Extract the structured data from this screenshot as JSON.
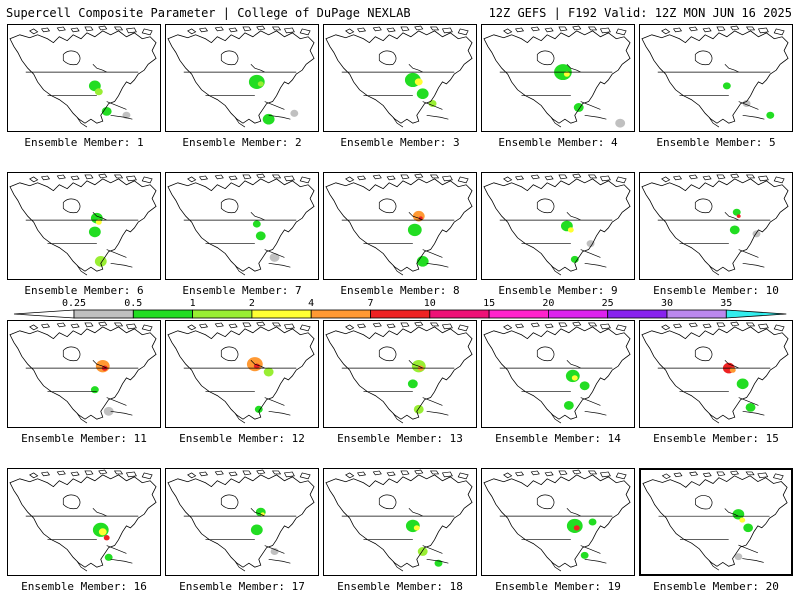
{
  "header": {
    "title_left": "Supercell Composite Parameter | College of DuPage NEXLAB",
    "title_right": "12Z GEFS | F192 Valid: 12Z MON JUN 16 2025"
  },
  "colorbar": {
    "labels": [
      "0.25",
      "0.5",
      "1",
      "2",
      "4",
      "7",
      "10",
      "15",
      "20",
      "25",
      "30",
      "35"
    ],
    "colors": [
      "#c0c0c0",
      "#22dd22",
      "#99ee33",
      "#ffff33",
      "#ff9933",
      "#ee2222",
      "#ee1177",
      "#ff22cc",
      "#dd22ee",
      "#8822ee",
      "#bb88ee",
      "#33eeee"
    ]
  },
  "panels": [
    {
      "caption": "Ensemble Member: 1"
    },
    {
      "caption": "Ensemble Member: 2"
    },
    {
      "caption": "Ensemble Member: 3"
    },
    {
      "caption": "Ensemble Member: 4"
    },
    {
      "caption": "Ensemble Member: 5"
    },
    {
      "caption": "Ensemble Member: 6"
    },
    {
      "caption": "Ensemble Member: 7"
    },
    {
      "caption": "Ensemble Member: 8"
    },
    {
      "caption": "Ensemble Member: 9"
    },
    {
      "caption": "Ensemble Member: 10"
    },
    {
      "caption": "Ensemble Member: 11"
    },
    {
      "caption": "Ensemble Member: 12"
    },
    {
      "caption": "Ensemble Member: 13"
    },
    {
      "caption": "Ensemble Member: 14"
    },
    {
      "caption": "Ensemble Member: 15"
    },
    {
      "caption": "Ensemble Member: 16"
    },
    {
      "caption": "Ensemble Member: 17"
    },
    {
      "caption": "Ensemble Member: 18"
    },
    {
      "caption": "Ensemble Member: 19"
    },
    {
      "caption": "Ensemble Member: 20"
    }
  ],
  "map_colors": {
    "coast": "#000000",
    "low": "#c0c0c0",
    "green": "#22dd22",
    "lime": "#99ee33",
    "yellow": "#ffff33",
    "orange": "#ff9933",
    "red": "#ee2222"
  }
}
